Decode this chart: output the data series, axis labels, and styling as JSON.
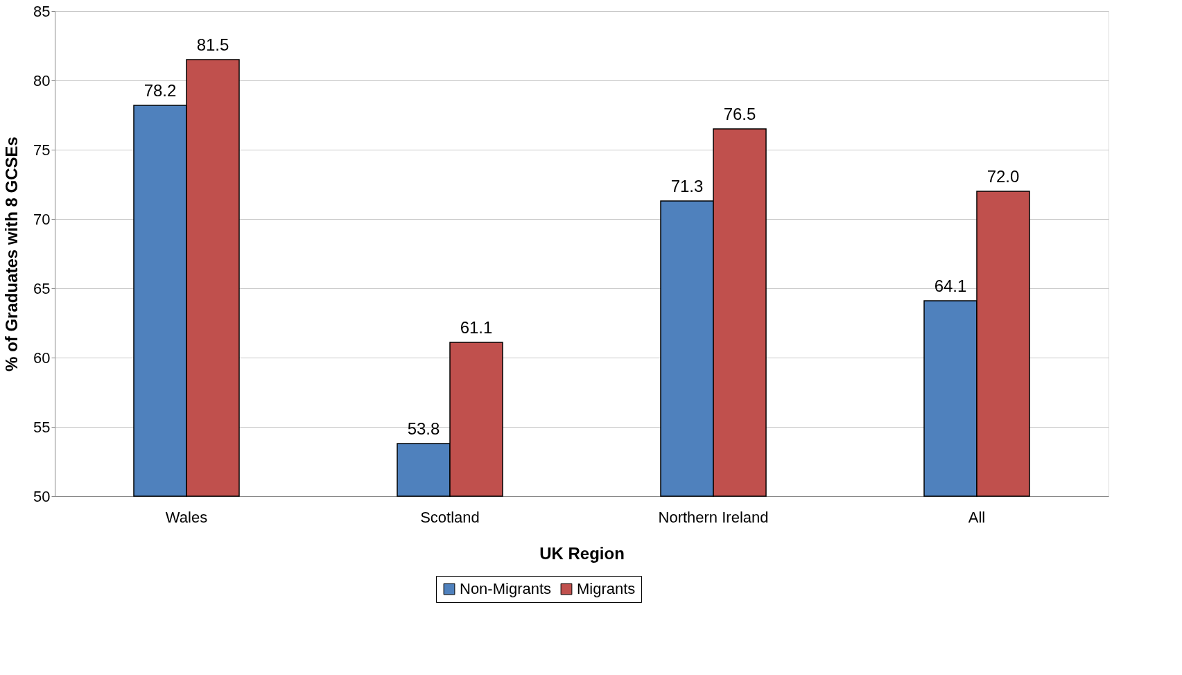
{
  "chart_data": {
    "type": "bar",
    "xlabel": "UK Region",
    "ylabel": "% of Graduates with 8 GCSEs",
    "categories": [
      "Wales",
      "Scotland",
      "Northern Ireland",
      "All"
    ],
    "series": [
      {
        "name": "Non-Migrants",
        "color": "#4f81bd",
        "values": [
          78.2,
          53.8,
          71.3,
          64.1
        ],
        "value_labels": [
          "78.2",
          "53.8",
          "71.3",
          "64.1"
        ]
      },
      {
        "name": "Migrants",
        "color": "#c0504d",
        "values": [
          81.5,
          61.1,
          76.5,
          72.0
        ],
        "value_labels": [
          "81.5",
          "61.1",
          "76.5",
          "72.0"
        ]
      }
    ],
    "ylim": [
      50,
      85
    ],
    "yticks": [
      50,
      55,
      60,
      65,
      70,
      75,
      80,
      85
    ],
    "grid": "y",
    "legend": "bottom"
  }
}
